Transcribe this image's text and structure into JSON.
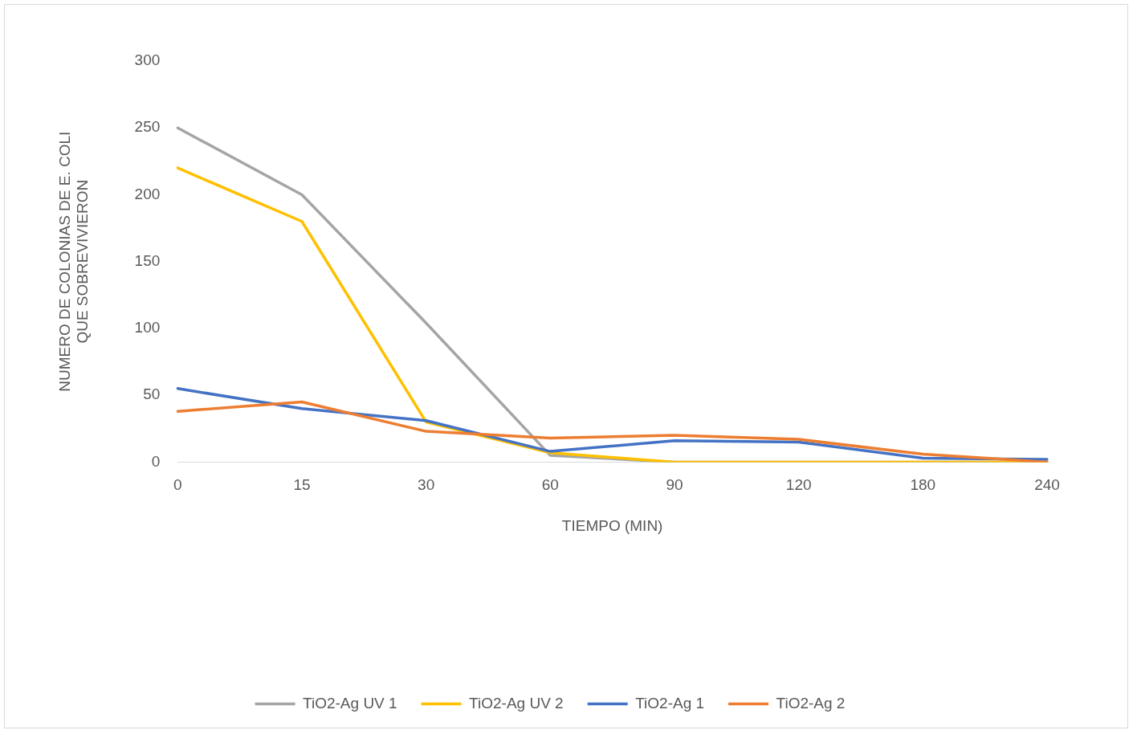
{
  "chart_data": {
    "type": "line",
    "xlabel": "TIEMPO (MIN)",
    "ylabel": "NUMERO DE COLONIAS DE E. COLI\nQUE SOBREVIVIERON",
    "categories": [
      "0",
      "15",
      "30",
      "60",
      "90",
      "120",
      "180",
      "240"
    ],
    "series": [
      {
        "name": "TiO2-Ag UV 1",
        "color": "#a5a5a5",
        "values": [
          250,
          200,
          104,
          5,
          0,
          0,
          0,
          0
        ]
      },
      {
        "name": "TiO2-Ag UV 2",
        "color": "#ffc000",
        "values": [
          220,
          180,
          30,
          7,
          0,
          0,
          0,
          0
        ]
      },
      {
        "name": "TiO2-Ag 1",
        "color": "#4472c4",
        "values": [
          55,
          40,
          31,
          8,
          16,
          15,
          3,
          2
        ]
      },
      {
        "name": "TiO2-Ag 2",
        "color": "#ed7d31",
        "values": [
          38,
          45,
          23,
          18,
          20,
          17,
          6,
          0
        ]
      }
    ],
    "ylim": [
      0,
      300
    ],
    "yticks": [
      0,
      50,
      100,
      150,
      200,
      250,
      300
    ],
    "grid": false,
    "legend": "bottom",
    "marker": "none",
    "line_style": "solid"
  }
}
